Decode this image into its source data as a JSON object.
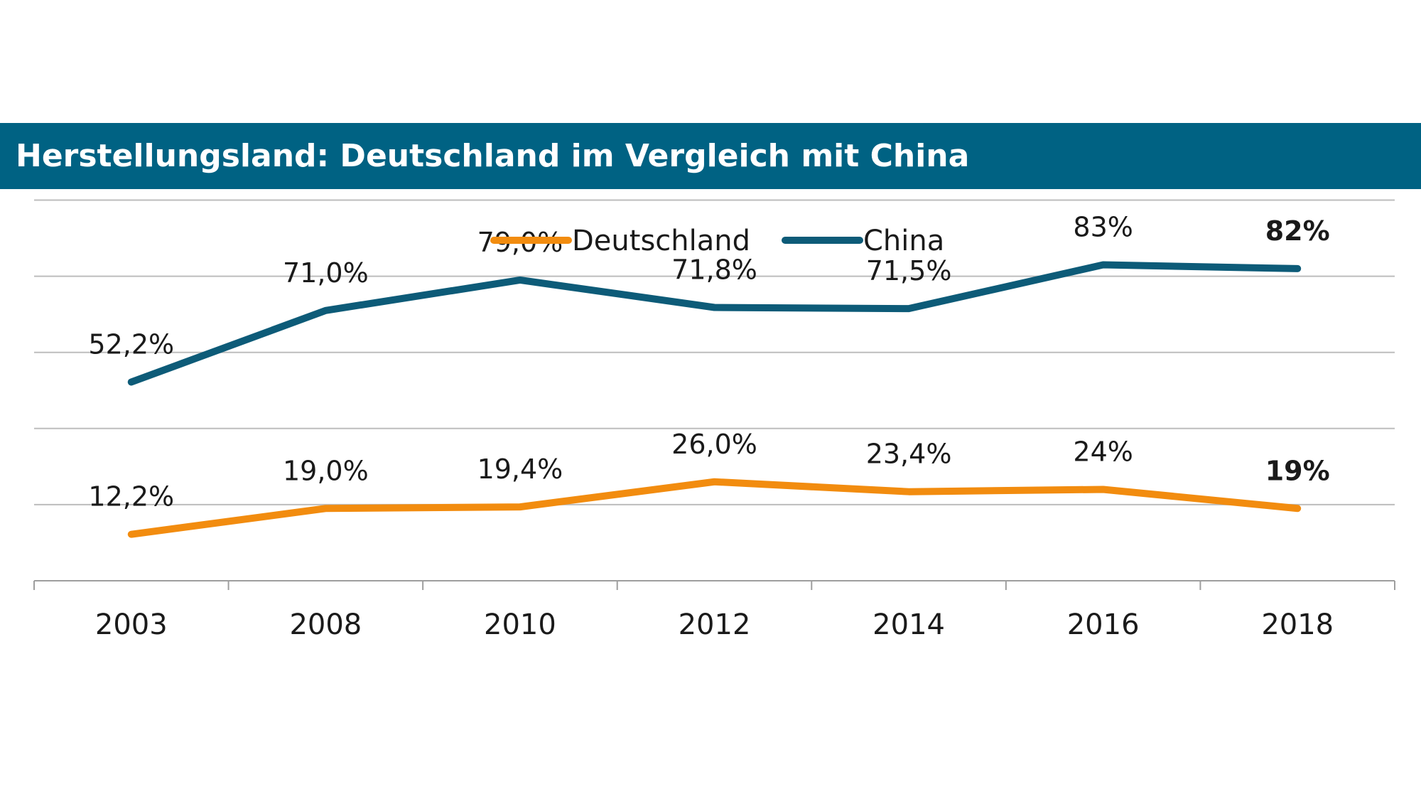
{
  "chart_data": {
    "type": "line",
    "title": "Herstellungsland: Deutschland im Vergleich mit China",
    "categories": [
      "2003",
      "2008",
      "2010",
      "2012",
      "2014",
      "2016",
      "2018"
    ],
    "series": [
      {
        "name": "Deutschland",
        "color": "#f28c0f",
        "values": [
          12.2,
          19.0,
          19.4,
          26.0,
          23.4,
          24,
          19
        ],
        "labels": [
          "12,2%",
          "19,0%",
          "19,4%",
          "26,0%",
          "23,4%",
          "24%",
          "19%"
        ]
      },
      {
        "name": "China",
        "color": "#0d5b78",
        "values": [
          52.2,
          71.0,
          79.0,
          71.8,
          71.5,
          83,
          82
        ],
        "labels": [
          "52,2%",
          "71,0%",
          "79,0%",
          "71,8%",
          "71,5%",
          "83%",
          "82%"
        ]
      }
    ],
    "ylim": [
      0,
      100
    ],
    "grid": true,
    "legend": "top-center",
    "highlight_last_label": true,
    "xlabel": "",
    "ylabel": ""
  }
}
